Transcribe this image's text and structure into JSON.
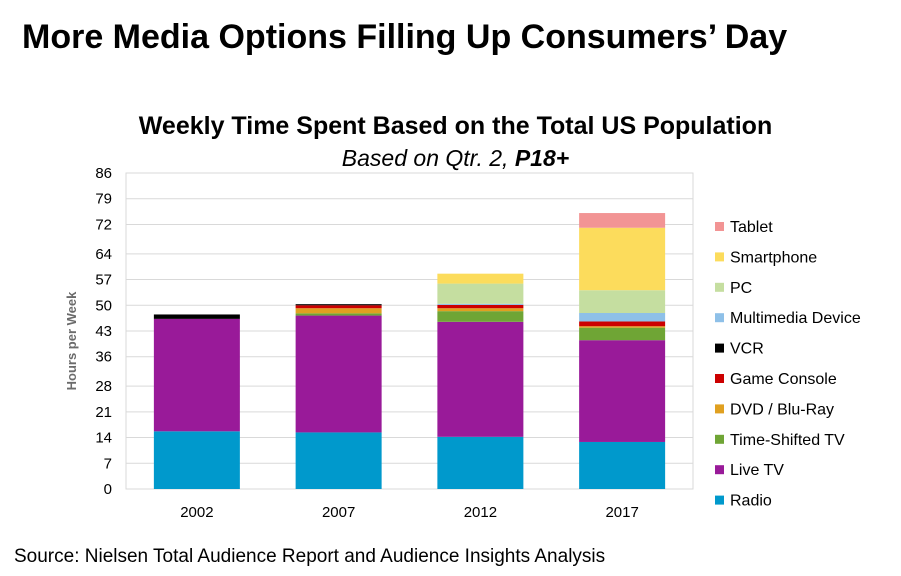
{
  "page": {
    "title": "More Media Options Filling Up Consumers’ Day",
    "source": "Source:  Nielsen Total Audience Report and Audience Insights Analysis"
  },
  "chart_data": {
    "type": "bar",
    "stacked": true,
    "title": "Weekly Time Spent Based on the Total US Population",
    "subtitle_prefix": "Based on Qtr. 2, ",
    "subtitle_bold": "P18+",
    "xlabel": "",
    "ylabel": "Hours per Week",
    "ylim": [
      0,
      86
    ],
    "yticks": [
      "0",
      "7",
      "14",
      "21",
      "28",
      "36",
      "43",
      "50",
      "57",
      "64",
      "72",
      "79",
      "86"
    ],
    "grid": true,
    "legend_position": "right",
    "categories": [
      "2002",
      "2007",
      "2012",
      "2017"
    ],
    "series": [
      {
        "name": "Radio",
        "color": "#0099cc",
        "values": [
          15.7,
          15.4,
          14.2,
          12.8
        ]
      },
      {
        "name": "Live TV",
        "color": "#991a99",
        "values": [
          30.6,
          31.8,
          31.3,
          27.7
        ]
      },
      {
        "name": "Time-Shifted TV",
        "color": "#6fa535",
        "values": [
          0,
          0.6,
          2.9,
          3.4
        ]
      },
      {
        "name": "DVD / Blu-Ray",
        "color": "#e0a020",
        "values": [
          0,
          1.4,
          0.8,
          0.4
        ]
      },
      {
        "name": "Game Console",
        "color": "#cc0000",
        "values": [
          0,
          0.8,
          0.9,
          1.3
        ]
      },
      {
        "name": "VCR",
        "color": "#000000",
        "values": [
          1.2,
          0.3,
          0,
          0
        ]
      },
      {
        "name": "Multimedia Device",
        "color": "#8ec0e8",
        "values": [
          0,
          0,
          0.3,
          2.3
        ]
      },
      {
        "name": "PC",
        "color": "#c5dea0",
        "values": [
          0,
          0,
          5.5,
          6.2
        ]
      },
      {
        "name": "Smartphone",
        "color": "#fcdc5c",
        "values": [
          0,
          0,
          2.7,
          17.0
        ]
      },
      {
        "name": "Tablet",
        "color": "#f29494",
        "values": [
          0,
          0,
          0,
          4.0
        ]
      }
    ]
  }
}
